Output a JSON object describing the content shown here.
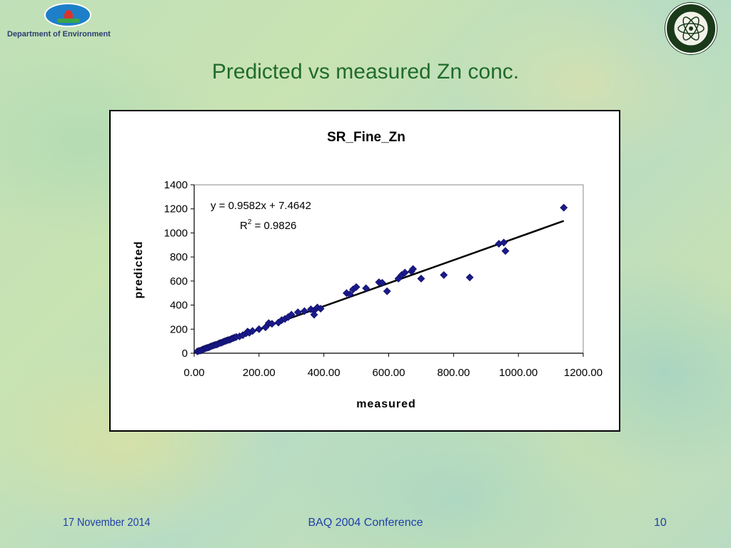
{
  "header": {
    "dept_label": "Department of Environment",
    "slide_title": "Predicted vs measured Zn conc."
  },
  "footer": {
    "date": "17 November 2014",
    "conference": "BAQ 2004 Conference",
    "page": "10"
  },
  "chart_data": {
    "type": "scatter",
    "title": "SR_Fine_Zn",
    "xlabel": "measured",
    "ylabel": "predicted",
    "xlim": [
      0,
      1200
    ],
    "ylim": [
      0,
      1400
    ],
    "x_ticks": [
      "0.00",
      "200.00",
      "400.00",
      "600.00",
      "800.00",
      "1000.00",
      "1200.00"
    ],
    "y_ticks": [
      "0",
      "200",
      "400",
      "600",
      "800",
      "1000",
      "1200",
      "1400"
    ],
    "grid": false,
    "marker_color": "#1a1a8c",
    "trendline": {
      "slope": 0.9582,
      "intercept": 7.4642,
      "x_range": [
        0,
        1140
      ],
      "equation_label": "y = 0.9582x + 7.4642",
      "r2_prefix": "R",
      "r2_sup": "2",
      "r2_value": " = 0.9826"
    },
    "points": [
      [
        10,
        15
      ],
      [
        15,
        20
      ],
      [
        20,
        22
      ],
      [
        25,
        30
      ],
      [
        30,
        35
      ],
      [
        35,
        40
      ],
      [
        40,
        45
      ],
      [
        45,
        48
      ],
      [
        50,
        55
      ],
      [
        55,
        60
      ],
      [
        60,
        65
      ],
      [
        65,
        70
      ],
      [
        70,
        72
      ],
      [
        75,
        80
      ],
      [
        80,
        85
      ],
      [
        85,
        88
      ],
      [
        90,
        95
      ],
      [
        95,
        100
      ],
      [
        100,
        105
      ],
      [
        105,
        110
      ],
      [
        110,
        112
      ],
      [
        115,
        120
      ],
      [
        120,
        125
      ],
      [
        125,
        130
      ],
      [
        130,
        135
      ],
      [
        140,
        140
      ],
      [
        150,
        150
      ],
      [
        160,
        165
      ],
      [
        165,
        180
      ],
      [
        170,
        170
      ],
      [
        180,
        185
      ],
      [
        200,
        200
      ],
      [
        220,
        215
      ],
      [
        230,
        250
      ],
      [
        240,
        245
      ],
      [
        260,
        255
      ],
      [
        270,
        275
      ],
      [
        280,
        285
      ],
      [
        290,
        300
      ],
      [
        300,
        320
      ],
      [
        320,
        340
      ],
      [
        340,
        350
      ],
      [
        360,
        365
      ],
      [
        370,
        355
      ],
      [
        380,
        380
      ],
      [
        390,
        370
      ],
      [
        370,
        320
      ],
      [
        470,
        500
      ],
      [
        480,
        490
      ],
      [
        490,
        530
      ],
      [
        500,
        550
      ],
      [
        530,
        540
      ],
      [
        570,
        590
      ],
      [
        580,
        585
      ],
      [
        595,
        515
      ],
      [
        630,
        620
      ],
      [
        640,
        650
      ],
      [
        650,
        670
      ],
      [
        670,
        680
      ],
      [
        675,
        700
      ],
      [
        700,
        620
      ],
      [
        770,
        650
      ],
      [
        850,
        630
      ],
      [
        940,
        910
      ],
      [
        955,
        920
      ],
      [
        960,
        850
      ],
      [
        1140,
        1210
      ]
    ]
  }
}
